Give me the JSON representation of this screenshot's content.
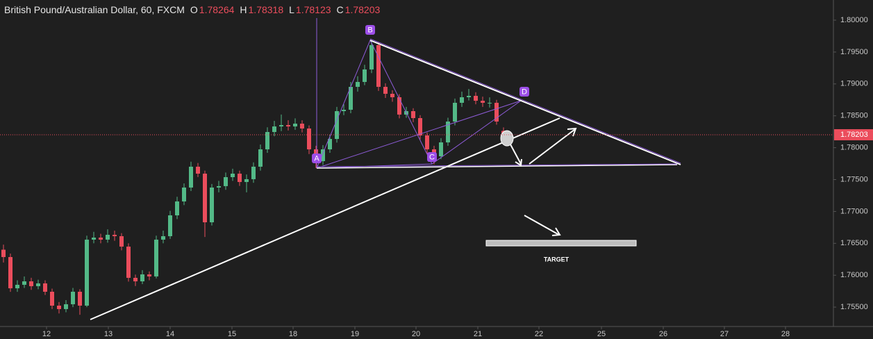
{
  "chart_data": {
    "type": "candlestick",
    "title": "British Pound/Australian Dollar, 60, FXCM",
    "ohlc_legend": [
      {
        "label": "O",
        "value": 1.78264
      },
      {
        "label": "H",
        "value": 1.78318
      },
      {
        "label": "L",
        "value": 1.78123
      },
      {
        "label": "C",
        "value": 1.78203
      }
    ],
    "up_color": "#53b987",
    "down_color": "#eb4d5c",
    "x": [
      0,
      1,
      2,
      3,
      4,
      5,
      6,
      7,
      8,
      9,
      10,
      11,
      12,
      13,
      14,
      15,
      16,
      17,
      18,
      19,
      20,
      21,
      22,
      23,
      24,
      25,
      26,
      27,
      28,
      29,
      30,
      31,
      32,
      33,
      34,
      35,
      36,
      37,
      38,
      39,
      40,
      41,
      42,
      43,
      44,
      45,
      46,
      47,
      48,
      49,
      50,
      51,
      52,
      53,
      54,
      55,
      56,
      57,
      58,
      59,
      60,
      61,
      62,
      63,
      64,
      65,
      66,
      67,
      68,
      69,
      70,
      71,
      72
    ],
    "open": [
      1.764,
      1.76285,
      1.75795,
      1.7585,
      1.75904,
      1.75828,
      1.75872,
      1.75741,
      1.75523,
      1.75469,
      1.75545,
      1.75741,
      1.75523,
      1.76558,
      1.7659,
      1.76558,
      1.76634,
      1.76612,
      1.76449,
      1.75959,
      1.75904,
      1.76013,
      1.75981,
      1.76558,
      1.76612,
      1.76939,
      1.77157,
      1.77375,
      1.77702,
      1.77593,
      1.7683,
      1.77375,
      1.77397,
      1.77538,
      1.77593,
      1.77462,
      1.77506,
      1.77702,
      1.77974,
      1.78246,
      1.78333,
      1.78355,
      1.78333,
      1.78377,
      1.78301,
      1.77974,
      1.77789,
      1.77974,
      1.78137,
      1.78573,
      1.78595,
      1.78954,
      1.79031,
      1.79227,
      1.79608,
      1.78954,
      1.78845,
      1.78791,
      1.78519,
      1.78573,
      1.78464,
      1.78192,
      1.77974,
      1.77865,
      1.78083,
      1.7841,
      1.78704,
      1.78791,
      1.78813,
      1.78736,
      1.78704,
      1.78704,
      1.78264
    ],
    "high": [
      1.7648,
      1.7634,
      1.7592,
      1.7598,
      1.7596,
      1.7593,
      1.7592,
      1.7579,
      1.7558,
      1.7561,
      1.758,
      1.7578,
      1.7662,
      1.7668,
      1.7665,
      1.7672,
      1.767,
      1.7666,
      1.765,
      1.7601,
      1.7608,
      1.7606,
      1.7662,
      1.767,
      1.7701,
      1.7723,
      1.7744,
      1.7778,
      1.7776,
      1.7764,
      1.7743,
      1.7748,
      1.7761,
      1.7767,
      1.7764,
      1.7758,
      1.7777,
      1.7805,
      1.7832,
      1.7842,
      1.7852,
      1.7843,
      1.7846,
      1.7843,
      1.7835,
      1.7803,
      1.7804,
      1.782,
      1.7864,
      1.7868,
      1.7903,
      1.7912,
      1.793,
      1.7968,
      1.7965,
      1.7901,
      1.789,
      1.7884,
      1.7864,
      1.7862,
      1.7851,
      1.7824,
      1.7803,
      1.7815,
      1.7847,
      1.7877,
      1.7888,
      1.7892,
      1.7887,
      1.788,
      1.7879,
      1.7875,
      1.78318
    ],
    "low": [
      1.762,
      1.7574,
      1.7574,
      1.758,
      1.7577,
      1.7578,
      1.7569,
      1.7547,
      1.754,
      1.7542,
      1.755,
      1.7538,
      1.755,
      1.765,
      1.765,
      1.7651,
      1.7654,
      1.7639,
      1.759,
      1.7583,
      1.7586,
      1.7592,
      1.7595,
      1.765,
      1.7657,
      1.7688,
      1.771,
      1.7732,
      1.7754,
      1.766,
      1.7678,
      1.773,
      1.7734,
      1.7748,
      1.774,
      1.773,
      1.7745,
      1.7764,
      1.7792,
      1.7818,
      1.7826,
      1.7827,
      1.7828,
      1.7824,
      1.779,
      1.7768,
      1.7773,
      1.7792,
      1.7808,
      1.7851,
      1.7854,
      1.7888,
      1.7898,
      1.7917,
      1.7889,
      1.7878,
      1.7872,
      1.7846,
      1.7847,
      1.784,
      1.7813,
      1.779,
      1.7774,
      1.7782,
      1.7803,
      1.7835,
      1.7864,
      1.7874,
      1.7868,
      1.7864,
      1.7863,
      1.7836,
      1.78123
    ],
    "close": [
      1.76285,
      1.75795,
      1.7585,
      1.75904,
      1.75828,
      1.75872,
      1.75741,
      1.75523,
      1.75469,
      1.75545,
      1.75741,
      1.75523,
      1.76558,
      1.7659,
      1.76558,
      1.76634,
      1.76612,
      1.76449,
      1.75959,
      1.75904,
      1.76013,
      1.75981,
      1.76558,
      1.76612,
      1.76939,
      1.77157,
      1.77375,
      1.77702,
      1.77593,
      1.7683,
      1.77375,
      1.77397,
      1.77538,
      1.77593,
      1.77462,
      1.77506,
      1.77702,
      1.77974,
      1.78246,
      1.78333,
      1.78355,
      1.78333,
      1.78377,
      1.78301,
      1.77974,
      1.77789,
      1.77974,
      1.78137,
      1.78573,
      1.78595,
      1.78954,
      1.79031,
      1.79227,
      1.79608,
      1.78954,
      1.78845,
      1.78791,
      1.78519,
      1.78573,
      1.78464,
      1.78192,
      1.77974,
      1.77865,
      1.78083,
      1.7841,
      1.78704,
      1.78791,
      1.78813,
      1.78736,
      1.78704,
      1.78704,
      1.7841,
      1.78203
    ],
    "last_price": 1.78203,
    "last_price_color": "#eb4d5c",
    "xlim": [
      -0.5,
      119.5
    ],
    "xticks": [
      {
        "value": 6.2,
        "label": "12"
      },
      {
        "value": 15.1,
        "label": "13"
      },
      {
        "value": 24.0,
        "label": "14"
      },
      {
        "value": 32.9,
        "label": "15"
      },
      {
        "value": 41.7,
        "label": "18"
      },
      {
        "value": 50.6,
        "label": "19"
      },
      {
        "value": 59.4,
        "label": "20"
      },
      {
        "value": 68.3,
        "label": "21"
      },
      {
        "value": 77.1,
        "label": "22"
      },
      {
        "value": 86.1,
        "label": "25"
      },
      {
        "value": 95.0,
        "label": "26"
      },
      {
        "value": 103.8,
        "label": "27"
      },
      {
        "value": 112.6,
        "label": "28"
      }
    ],
    "ylim": [
      1.75196,
      1.80316
    ],
    "yticks": [
      {
        "value": 1.755,
        "label": "1.75500"
      },
      {
        "value": 1.76,
        "label": "1.76000"
      },
      {
        "value": 1.765,
        "label": "1.76500"
      },
      {
        "value": 1.77,
        "label": "1.77000"
      },
      {
        "value": 1.775,
        "label": "1.77500"
      },
      {
        "value": 1.78,
        "label": "1.78000"
      },
      {
        "value": 1.785,
        "label": "1.78500"
      },
      {
        "value": 1.79,
        "label": "1.79000"
      },
      {
        "value": 1.795,
        "label": "1.79500"
      },
      {
        "value": 1.8,
        "label": "1.80000"
      }
    ],
    "grid": false,
    "pattern_labels": [
      "A",
      "B",
      "C",
      "D"
    ],
    "target_label": "TARGET"
  }
}
